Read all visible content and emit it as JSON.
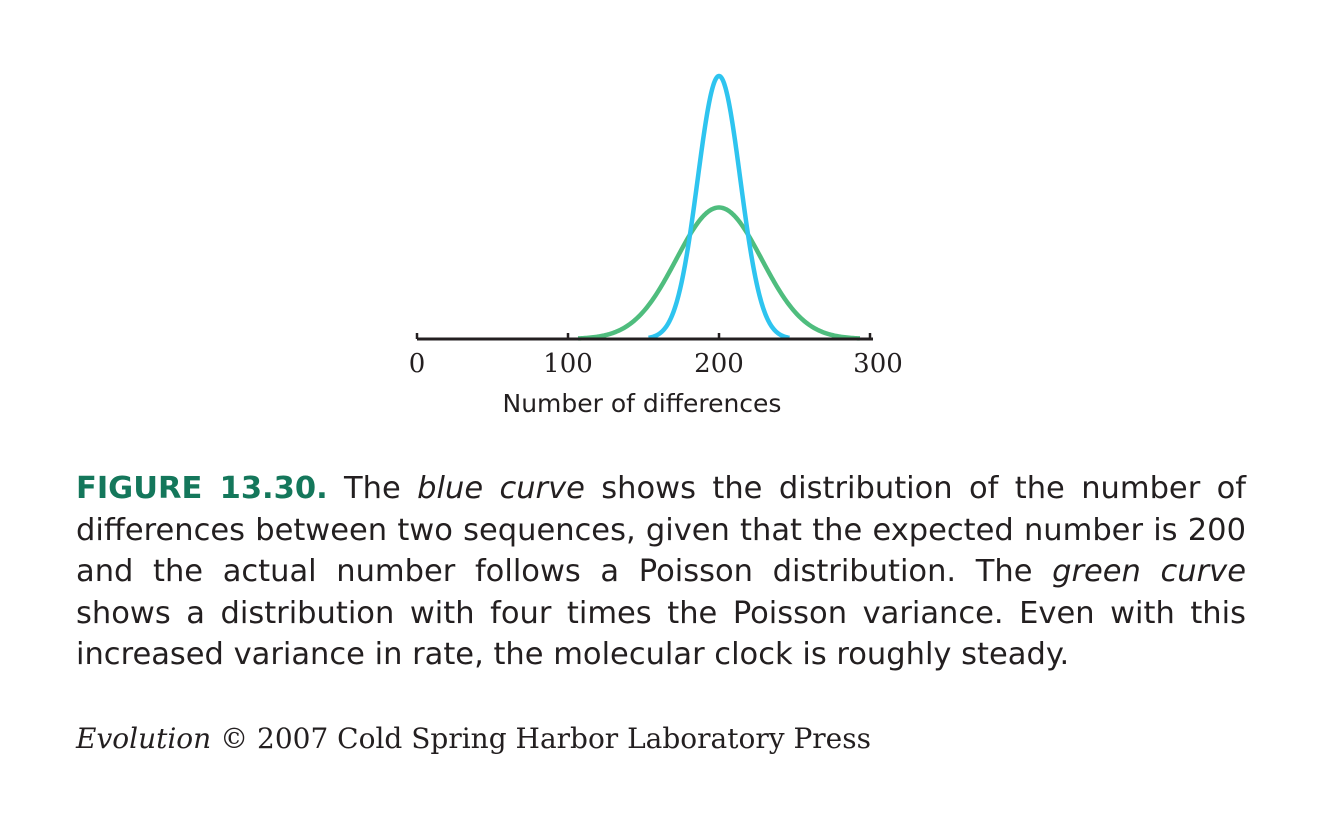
{
  "chart_data": {
    "type": "line",
    "xlabel": "Number of differences",
    "xlim": [
      0,
      300
    ],
    "x_ticks": [
      "0",
      "100",
      "200",
      "300"
    ],
    "ylabel": "",
    "grid": false,
    "legend": "none",
    "series": [
      {
        "color": "#2ec4ef",
        "mean": 200,
        "variance": 200
      },
      {
        "color": "#4fbd7e",
        "mean": 200,
        "variance": 800
      }
    ]
  },
  "caption": {
    "label": "FIGURE 13.30.",
    "t1": " The ",
    "em1": "blue curve",
    "t2": " shows the distribution of the number of differences between two sequences, given that the expected number is 200 and the actual number follows a Poisson distribution. The ",
    "em2": "green curve",
    "t3": " shows a distribution with four times the Poisson variance. Even with this increased variance in rate, the molecular clock is roughly steady."
  },
  "credit": {
    "book": "Evolution",
    "text": " © 2007 Cold Spring Harbor Laboratory Press"
  }
}
